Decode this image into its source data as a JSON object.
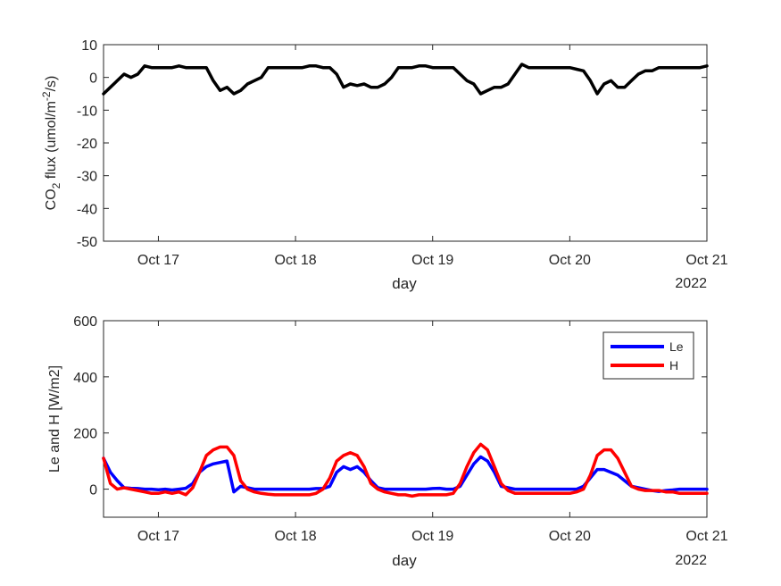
{
  "chart_data": [
    {
      "type": "line",
      "title": "",
      "xlabel": "day",
      "ylabel_main": "CO",
      "ylabel_sub": "2",
      "ylabel_rest": " flux (umol/m",
      "ylabel_sup": "-2",
      "ylabel_end": "/s)",
      "x_year_label": "2022",
      "xlim": [
        16.6,
        21.0
      ],
      "ylim": [
        -50,
        10
      ],
      "yticks": [
        10,
        0,
        -10,
        -20,
        -30,
        -40,
        -50
      ],
      "xticks": [
        {
          "value": 17,
          "label": "Oct 17"
        },
        {
          "value": 18,
          "label": "Oct 18"
        },
        {
          "value": 19,
          "label": "Oct 19"
        },
        {
          "value": 20,
          "label": "Oct 20"
        },
        {
          "value": 21,
          "label": "Oct 21"
        }
      ],
      "grid": false,
      "series": [
        {
          "color": "#000000",
          "x": [
            16.6,
            16.65,
            16.7,
            16.75,
            16.8,
            16.85,
            16.9,
            16.95,
            17.0,
            17.05,
            17.1,
            17.15,
            17.2,
            17.25,
            17.3,
            17.35,
            17.4,
            17.45,
            17.5,
            17.55,
            17.6,
            17.65,
            17.7,
            17.75,
            17.8,
            17.85,
            17.9,
            17.95,
            18.0,
            18.05,
            18.1,
            18.15,
            18.2,
            18.25,
            18.3,
            18.35,
            18.4,
            18.45,
            18.5,
            18.55,
            18.6,
            18.65,
            18.7,
            18.75,
            18.8,
            18.85,
            18.9,
            18.95,
            19.0,
            19.05,
            19.1,
            19.15,
            19.2,
            19.25,
            19.3,
            19.35,
            19.4,
            19.45,
            19.5,
            19.55,
            19.6,
            19.65,
            19.7,
            19.75,
            19.8,
            19.85,
            19.9,
            19.95,
            20.0,
            20.05,
            20.1,
            20.15,
            20.2,
            20.25,
            20.3,
            20.35,
            20.4,
            20.45,
            20.5,
            20.55,
            20.6,
            20.65,
            20.7,
            20.75,
            20.8,
            20.85,
            20.9,
            20.95,
            21.0
          ],
          "values": [
            -5,
            -3,
            -1,
            1,
            0,
            1,
            3.5,
            3,
            3,
            3,
            3,
            3.5,
            3,
            3,
            3,
            3,
            -1,
            -4,
            -3,
            -5,
            -4,
            -2,
            -1,
            0,
            3,
            3,
            3,
            3,
            3,
            3,
            3.5,
            3.5,
            3,
            3,
            1,
            -3,
            -2,
            -2.5,
            -2,
            -3,
            -3,
            -2,
            0,
            3,
            3,
            3,
            3.5,
            3.5,
            3,
            3,
            3,
            3,
            1,
            -1,
            -2,
            -5,
            -4,
            -3,
            -3,
            -2,
            1,
            4,
            3,
            3,
            3,
            3,
            3,
            3,
            3,
            2.5,
            2,
            -1,
            -5,
            -2,
            -1,
            -3,
            -3,
            -1,
            1,
            2,
            2,
            3,
            3,
            3,
            3,
            3,
            3,
            3,
            3.5
          ]
        }
      ]
    },
    {
      "type": "line",
      "title": "",
      "xlabel": "day",
      "ylabel": "Le and H [W/m2]",
      "x_year_label": "2022",
      "xlim": [
        16.6,
        21.0
      ],
      "ylim": [
        -100,
        600
      ],
      "yticks": [
        600,
        400,
        200,
        0
      ],
      "xticks": [
        {
          "value": 17,
          "label": "Oct 17"
        },
        {
          "value": 18,
          "label": "Oct 18"
        },
        {
          "value": 19,
          "label": "Oct 19"
        },
        {
          "value": 20,
          "label": "Oct 20"
        },
        {
          "value": 21,
          "label": "Oct 21"
        }
      ],
      "grid": false,
      "legend_position": "top-right",
      "series": [
        {
          "name": "Le",
          "color": "#0000ff",
          "x": [
            16.6,
            16.65,
            16.7,
            16.75,
            16.8,
            16.85,
            16.9,
            16.95,
            17.0,
            17.05,
            17.1,
            17.15,
            17.2,
            17.25,
            17.3,
            17.35,
            17.4,
            17.45,
            17.5,
            17.55,
            17.6,
            17.65,
            17.7,
            17.75,
            17.8,
            17.85,
            17.9,
            17.95,
            18.0,
            18.05,
            18.1,
            18.15,
            18.2,
            18.25,
            18.3,
            18.35,
            18.4,
            18.45,
            18.5,
            18.55,
            18.6,
            18.65,
            18.7,
            18.75,
            18.8,
            18.85,
            18.9,
            18.95,
            19.0,
            19.05,
            19.1,
            19.15,
            19.2,
            19.25,
            19.3,
            19.35,
            19.4,
            19.45,
            19.5,
            19.55,
            19.6,
            19.65,
            19.7,
            19.75,
            19.8,
            19.85,
            19.9,
            19.95,
            20.0,
            20.05,
            20.1,
            20.15,
            20.2,
            20.25,
            20.3,
            20.35,
            20.4,
            20.45,
            20.5,
            20.55,
            20.6,
            20.65,
            20.7,
            20.75,
            20.8,
            20.85,
            20.9,
            20.95,
            21.0
          ],
          "values": [
            110,
            60,
            30,
            5,
            3,
            2,
            0,
            0,
            -2,
            0,
            -3,
            0,
            3,
            20,
            60,
            80,
            90,
            95,
            100,
            -10,
            10,
            5,
            0,
            0,
            0,
            0,
            0,
            0,
            0,
            0,
            0,
            2,
            2,
            10,
            60,
            80,
            70,
            80,
            60,
            30,
            5,
            0,
            0,
            0,
            0,
            0,
            0,
            0,
            2,
            3,
            0,
            0,
            10,
            50,
            90,
            115,
            100,
            60,
            10,
            5,
            0,
            0,
            0,
            0,
            0,
            0,
            0,
            0,
            0,
            0,
            10,
            40,
            70,
            70,
            60,
            50,
            30,
            10,
            5,
            0,
            -5,
            -8,
            -5,
            -3,
            0,
            0,
            0,
            0,
            0
          ]
        },
        {
          "name": "H",
          "color": "#ff0000",
          "x": [
            16.6,
            16.65,
            16.7,
            16.75,
            16.8,
            16.85,
            16.9,
            16.95,
            17.0,
            17.05,
            17.1,
            17.15,
            17.2,
            17.25,
            17.3,
            17.35,
            17.4,
            17.45,
            17.5,
            17.55,
            17.6,
            17.65,
            17.7,
            17.75,
            17.8,
            17.85,
            17.9,
            17.95,
            18.0,
            18.05,
            18.1,
            18.15,
            18.2,
            18.25,
            18.3,
            18.35,
            18.4,
            18.45,
            18.5,
            18.55,
            18.6,
            18.65,
            18.7,
            18.75,
            18.8,
            18.85,
            18.9,
            18.95,
            19.0,
            19.05,
            19.1,
            19.15,
            19.2,
            19.25,
            19.3,
            19.35,
            19.4,
            19.45,
            19.5,
            19.55,
            19.6,
            19.65,
            19.7,
            19.75,
            19.8,
            19.85,
            19.9,
            19.95,
            20.0,
            20.05,
            20.1,
            20.15,
            20.2,
            20.25,
            20.3,
            20.35,
            20.4,
            20.45,
            20.5,
            20.55,
            20.6,
            20.65,
            20.7,
            20.75,
            20.8,
            20.85,
            20.9,
            20.95,
            21.0
          ],
          "values": [
            110,
            20,
            0,
            5,
            0,
            -5,
            -10,
            -15,
            -15,
            -10,
            -15,
            -10,
            -20,
            5,
            60,
            120,
            140,
            150,
            150,
            120,
            30,
            0,
            -10,
            -15,
            -18,
            -20,
            -20,
            -20,
            -20,
            -20,
            -20,
            -15,
            0,
            40,
            100,
            120,
            130,
            120,
            80,
            20,
            0,
            -10,
            -15,
            -20,
            -20,
            -25,
            -20,
            -20,
            -20,
            -20,
            -20,
            -15,
            20,
            80,
            130,
            160,
            140,
            80,
            20,
            -5,
            -15,
            -15,
            -15,
            -15,
            -15,
            -15,
            -15,
            -15,
            -15,
            -10,
            0,
            50,
            120,
            140,
            140,
            110,
            60,
            10,
            0,
            -5,
            -5,
            -5,
            -10,
            -10,
            -15,
            -15,
            -15,
            -15,
            -15
          ]
        }
      ]
    }
  ]
}
